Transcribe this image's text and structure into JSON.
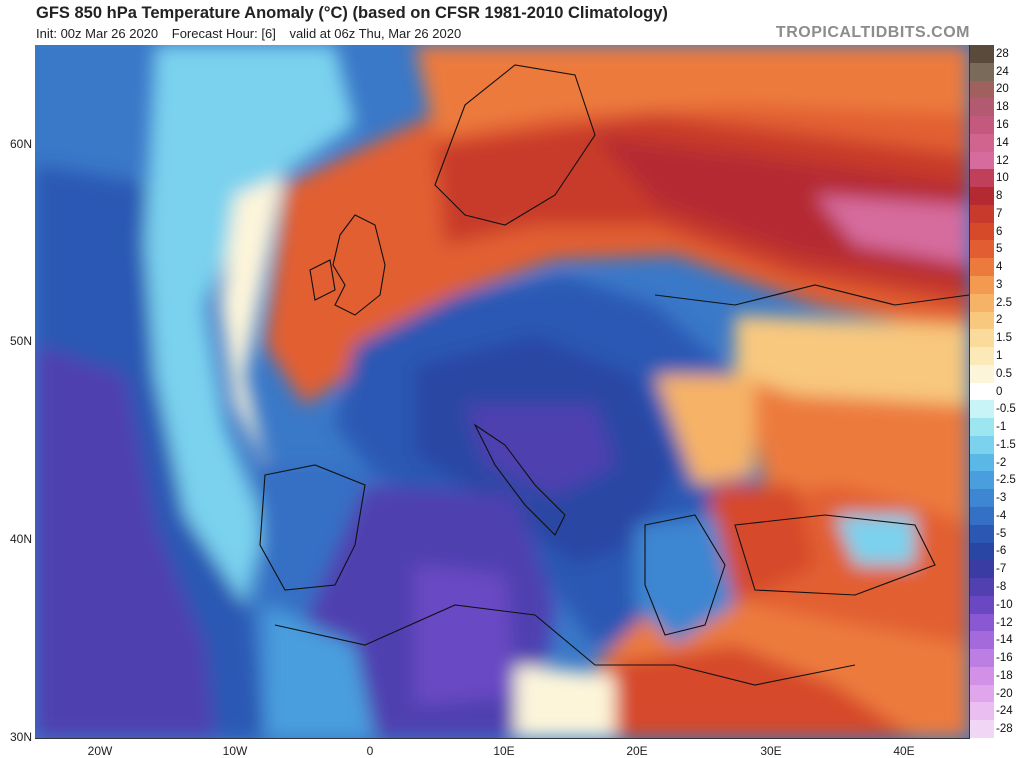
{
  "header": {
    "title": "GFS 850 hPa Temperature Anomaly (°C) (based on CFSR 1981-2010 Climatology)",
    "init": "Init: 00z Mar 26 2020",
    "forecast_hour": "Forecast Hour: [6]",
    "valid": "valid at 06z Thu, Mar 26 2020",
    "brand": "TROPICALTIDBITS.COM"
  },
  "axes": {
    "lat_labels": [
      "60N",
      "50N",
      "40N",
      "30N"
    ],
    "lon_labels": [
      "20W",
      "10W",
      "0",
      "10E",
      "20E",
      "30E",
      "40E"
    ]
  },
  "colorbar": {
    "labels": [
      "28",
      "24",
      "20",
      "18",
      "16",
      "14",
      "12",
      "10",
      "8",
      "7",
      "6",
      "5",
      "4",
      "3",
      "2.5",
      "2",
      "1.5",
      "1",
      "0.5",
      "0",
      "-0.5",
      "-1",
      "-1.5",
      "-2",
      "-2.5",
      "-3",
      "-4",
      "-5",
      "-6",
      "-7",
      "-8",
      "-10",
      "-12",
      "-14",
      "-16",
      "-18",
      "-20",
      "-24",
      "-28"
    ],
    "colors": [
      "#5a4a3c",
      "#7a6a5a",
      "#a0605e",
      "#b25a72",
      "#c35a7e",
      "#d0648e",
      "#d66c9e",
      "#c0405a",
      "#b52a30",
      "#c83a2c",
      "#d64a2a",
      "#e25e32",
      "#ec7a3c",
      "#f39a50",
      "#f6b266",
      "#f8c87e",
      "#fadb9c",
      "#fbeab8",
      "#fdf5da",
      "#ffffff",
      "#c8f4f8",
      "#9ce6f2",
      "#7ad2ee",
      "#5ab8e6",
      "#4a9ede",
      "#3e86d2",
      "#3470c4",
      "#2c58b4",
      "#2a46a4",
      "#3a3ca4",
      "#5040b0",
      "#6a48c4",
      "#8a58d2",
      "#a46adc",
      "#bc7ee2",
      "#d290e6",
      "#e0a6ec",
      "#eabef0",
      "#f2d6f6"
    ]
  }
}
